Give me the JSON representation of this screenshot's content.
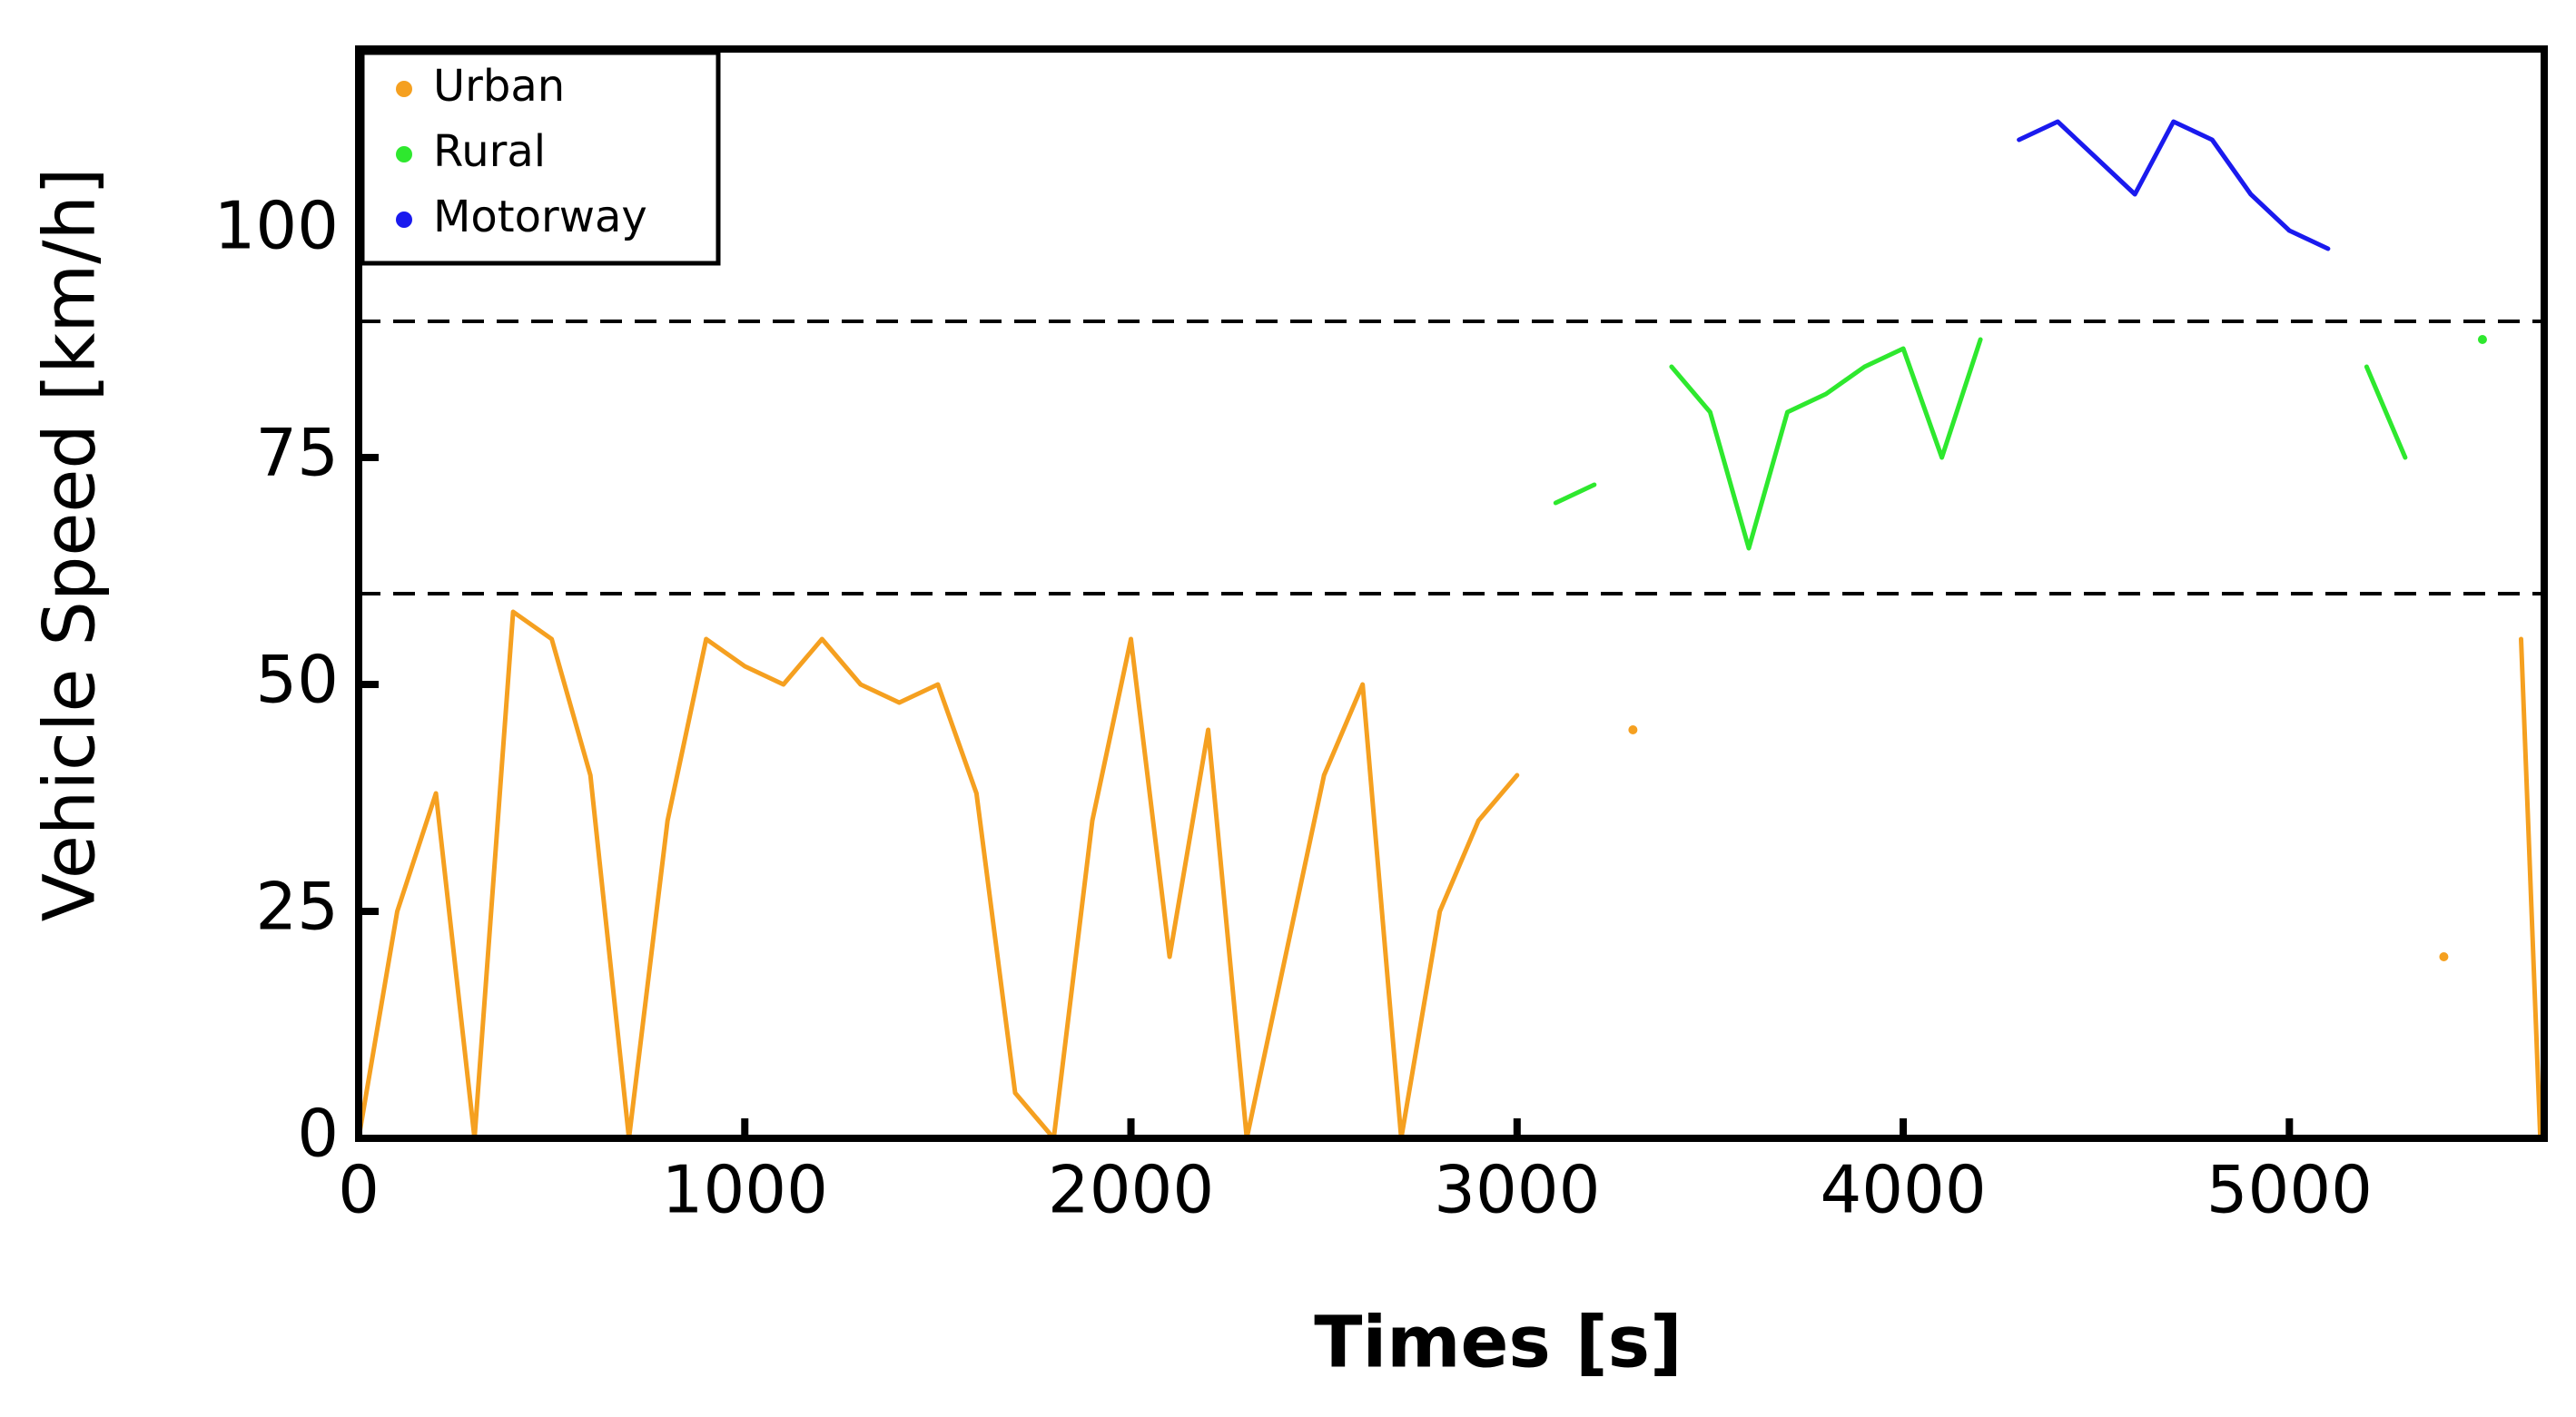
{
  "chart_data": {
    "type": "line",
    "xlabel": "Times [s]",
    "ylabel": "Vehicle Speed [km/h]",
    "x": [
      0,
      100,
      200,
      300,
      400,
      500,
      600,
      700,
      800,
      900,
      1000,
      1100,
      1200,
      1300,
      1400,
      1500,
      1600,
      1700,
      1800,
      1900,
      2000,
      2100,
      2200,
      2300,
      2400,
      2500,
      2600,
      2700,
      2800,
      2900,
      3000,
      3100,
      3200,
      3300,
      3400,
      3500,
      3600,
      3700,
      3800,
      3900,
      4000,
      4100,
      4200,
      4300,
      4400,
      4500,
      4600,
      4700,
      4800,
      4900,
      5000,
      5100,
      5200,
      5300,
      5400,
      5500,
      5600,
      5650
    ],
    "series": [
      {
        "name": "Urban",
        "color": "#f5a020",
        "values": [
          0,
          25,
          38,
          0,
          58,
          55,
          40,
          0,
          35,
          55,
          52,
          50,
          55,
          50,
          48,
          50,
          38,
          5,
          0,
          35,
          55,
          20,
          45,
          0,
          20,
          40,
          50,
          0,
          25,
          35,
          40,
          null,
          null,
          45,
          null,
          null,
          null,
          null,
          null,
          null,
          null,
          null,
          null,
          null,
          null,
          null,
          null,
          null,
          null,
          null,
          null,
          null,
          null,
          null,
          20,
          null,
          55,
          0
        ]
      },
      {
        "name": "Rural",
        "color": "#2ee82e",
        "values": [
          null,
          null,
          null,
          null,
          null,
          null,
          null,
          null,
          null,
          null,
          null,
          null,
          null,
          null,
          null,
          null,
          null,
          null,
          null,
          null,
          null,
          null,
          null,
          null,
          null,
          null,
          null,
          null,
          null,
          null,
          null,
          70,
          72,
          null,
          85,
          80,
          65,
          80,
          82,
          85,
          87,
          75,
          88,
          null,
          null,
          null,
          null,
          null,
          null,
          null,
          null,
          null,
          85,
          75,
          null,
          88,
          null,
          null
        ]
      },
      {
        "name": "Motorway",
        "color": "#1a1aee",
        "values": [
          null,
          null,
          null,
          null,
          null,
          null,
          null,
          null,
          null,
          null,
          null,
          null,
          null,
          null,
          null,
          null,
          null,
          null,
          null,
          null,
          null,
          null,
          null,
          null,
          null,
          null,
          null,
          null,
          null,
          null,
          null,
          null,
          null,
          null,
          null,
          null,
          null,
          null,
          null,
          null,
          null,
          null,
          null,
          110,
          112,
          108,
          104,
          112,
          110,
          104,
          100,
          98,
          null,
          null,
          null,
          null,
          null,
          null
        ]
      }
    ],
    "reference_lines": [
      60,
      90
    ],
    "xlim": [
      0,
      5660
    ],
    "xticks": [
      0,
      1000,
      2000,
      3000,
      4000,
      5000
    ],
    "ylim": [
      0,
      120
    ],
    "yticks": [
      0,
      25,
      50,
      75,
      100
    ],
    "legend": "upper left"
  }
}
